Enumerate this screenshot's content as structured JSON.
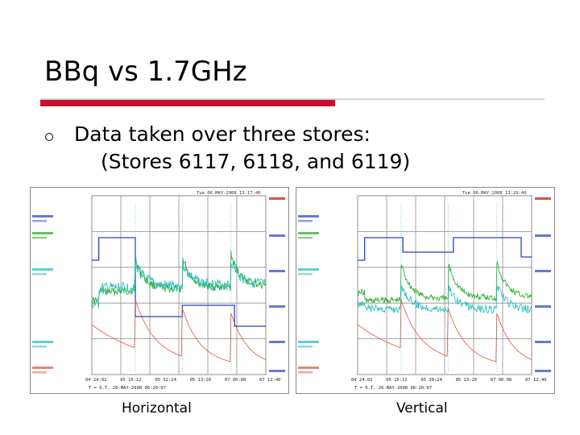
{
  "slide": {
    "title": "BBq vs 1.7GHz",
    "bullet": {
      "line1": "Data taken over three stores:",
      "line2": "(Stores 6117, 6118, and 6119)"
    }
  },
  "colors": {
    "accent_bar": "#c8102e",
    "rule": "#d4d4d4",
    "trace_blue": "#2a3fbf",
    "trace_green": "#1faa1f",
    "trace_cyan": "#20b8b8",
    "trace_red": "#e05040",
    "grid": "#8c8c8c"
  },
  "panels": [
    {
      "caption": "Horizontal",
      "time_label": "Tue 06-MAY-2008 13:17:40",
      "footer": "T = 0.T. 26-MAY-2008 06:20:07",
      "x_ticks": [
        "04 24:02",
        "05 15:12",
        "05 32:24",
        "05 13:20",
        "07 00:00",
        "07 12:40"
      ]
    },
    {
      "caption": "Vertical",
      "time_label": "Tue 06-MAY-2008 13:26:40",
      "footer": "T = 0.T. 26-MAY-2008 06:20:07",
      "x_ticks": [
        "04 24:02",
        "05 15:12",
        "05 30:24",
        "05 13:20",
        "07 00:00",
        "07 12:40"
      ]
    }
  ]
}
